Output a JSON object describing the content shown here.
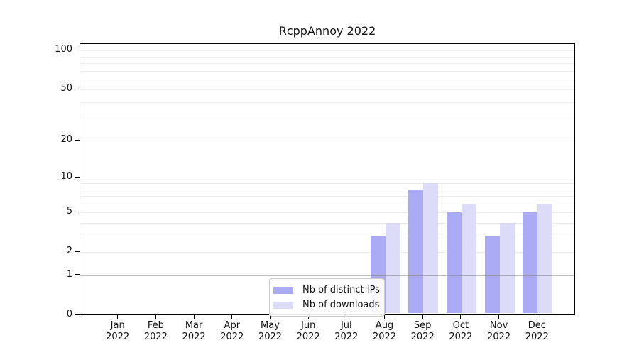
{
  "title": "RcppAnnoy 2022",
  "colors": {
    "ips_bar": "#aaaaf5",
    "downloads_bar": "#dcdcf8",
    "grid_minor": "#ededed",
    "grid_emphasis": "rgba(128,128,128,0.55)",
    "axis": "#000000",
    "legend_border": "#cccccc"
  },
  "chart_data": {
    "type": "bar",
    "title": "RcppAnnoy 2022",
    "y_scale": "log1p",
    "y_max": 112.2,
    "y_tick_values": [
      0,
      1,
      2,
      5,
      10,
      20,
      50,
      100
    ],
    "y_tick_labels": [
      "0",
      "1",
      "2",
      "5",
      "10",
      "20",
      "50",
      "100"
    ],
    "grid_values": [
      2,
      3,
      4,
      5,
      6,
      7,
      8,
      9,
      10,
      20,
      30,
      40,
      50,
      60,
      70,
      80,
      90,
      100
    ],
    "emphasis_grid_value": 1,
    "categories": [
      "Jan",
      "Feb",
      "Mar",
      "Apr",
      "May",
      "Jun",
      "Jul",
      "Aug",
      "Sep",
      "Oct",
      "Nov",
      "Dec"
    ],
    "category_year": "2022",
    "series": [
      {
        "name": "Nb of distinct IPs",
        "color": "#aaaaf5",
        "values": [
          0,
          0,
          0,
          0,
          0,
          0,
          0,
          3,
          8,
          5,
          3,
          5
        ]
      },
      {
        "name": "Nb of downloads",
        "color": "#dcdcf8",
        "values": [
          0,
          0,
          0,
          0,
          0,
          0,
          0,
          4,
          9,
          6,
          4,
          6
        ]
      }
    ],
    "legend_position": "lower center",
    "grid": true
  }
}
